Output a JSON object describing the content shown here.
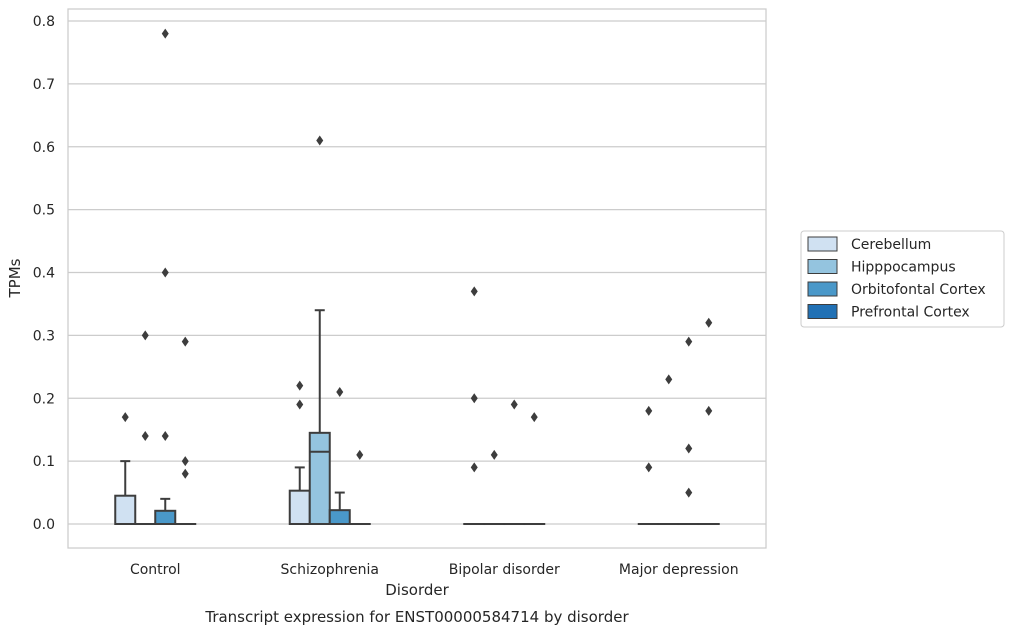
{
  "chart_data": {
    "type": "box",
    "caption": "Transcript expression for ENST00000584714 by disorder",
    "xlabel": "Disorder",
    "ylabel": "TPMs",
    "ylim": [
      -0.04,
      0.82
    ],
    "yticks": [
      "0.0",
      "0.1",
      "0.2",
      "0.3",
      "0.4",
      "0.5",
      "0.6",
      "0.7",
      "0.8"
    ],
    "categories": [
      "Control",
      "Schizophrenia",
      "Bipolar disorder",
      "Major depression"
    ],
    "grid": "horizontal",
    "legend_position": "right",
    "series": [
      {
        "name": "Cerebellum",
        "color": "#d0e1f2",
        "boxes": [
          {
            "q1": 0,
            "median": 0,
            "q3": 0.045,
            "whisker_low": 0,
            "whisker_high": 0.1,
            "outliers": [
              0.17
            ]
          },
          {
            "q1": 0,
            "median": 0,
            "q3": 0.053,
            "whisker_low": 0,
            "whisker_high": 0.09,
            "outliers": [
              0.19,
              0.22
            ]
          },
          {
            "q1": 0,
            "median": 0,
            "q3": 0,
            "whisker_low": 0,
            "whisker_high": 0,
            "outliers": [
              0.09,
              0.2,
              0.37
            ]
          },
          {
            "q1": 0,
            "median": 0,
            "q3": 0,
            "whisker_low": 0,
            "whisker_high": 0,
            "outliers": [
              0.09,
              0.18
            ]
          }
        ]
      },
      {
        "name": "Hipppocampus",
        "color": "#94c4df",
        "boxes": [
          {
            "q1": 0,
            "median": 0,
            "q3": 0,
            "whisker_low": 0,
            "whisker_high": 0,
            "outliers": [
              0.14,
              0.3
            ]
          },
          {
            "q1": 0,
            "median": 0.115,
            "q3": 0.145,
            "whisker_low": 0,
            "whisker_high": 0.34,
            "outliers": [
              0.61
            ]
          },
          {
            "q1": 0,
            "median": 0,
            "q3": 0,
            "whisker_low": 0,
            "whisker_high": 0,
            "outliers": [
              0.11
            ]
          },
          {
            "q1": 0,
            "median": 0,
            "q3": 0,
            "whisker_low": 0,
            "whisker_high": 0,
            "outliers": [
              0.23
            ]
          }
        ]
      },
      {
        "name": "Orbitofontal Cortex",
        "color": "#4a98c9",
        "boxes": [
          {
            "q1": 0,
            "median": 0,
            "q3": 0.021,
            "whisker_low": 0,
            "whisker_high": 0.04,
            "outliers": [
              0.14,
              0.4,
              0.78
            ]
          },
          {
            "q1": 0,
            "median": 0,
            "q3": 0.022,
            "whisker_low": 0,
            "whisker_high": 0.05,
            "outliers": [
              0.21
            ]
          },
          {
            "q1": 0,
            "median": 0,
            "q3": 0,
            "whisker_low": 0,
            "whisker_high": 0,
            "outliers": [
              0.19
            ]
          },
          {
            "q1": 0,
            "median": 0,
            "q3": 0,
            "whisker_low": 0,
            "whisker_high": 0,
            "outliers": [
              0.05,
              0.12,
              0.29
            ]
          }
        ]
      },
      {
        "name": "Prefrontal Cortex",
        "color": "#2171b5",
        "boxes": [
          {
            "q1": 0,
            "median": 0,
            "q3": 0,
            "whisker_low": 0,
            "whisker_high": 0,
            "outliers": [
              0.08,
              0.1,
              0.29
            ]
          },
          {
            "q1": 0,
            "median": 0,
            "q3": 0,
            "whisker_low": 0,
            "whisker_high": 0,
            "outliers": [
              0.11
            ]
          },
          {
            "q1": 0,
            "median": 0,
            "q3": 0,
            "whisker_low": 0,
            "whisker_high": 0,
            "outliers": [
              0.17
            ]
          },
          {
            "q1": 0,
            "median": 0,
            "q3": 0,
            "whisker_low": 0,
            "whisker_high": 0,
            "outliers": [
              0.18,
              0.32
            ]
          }
        ]
      }
    ]
  }
}
